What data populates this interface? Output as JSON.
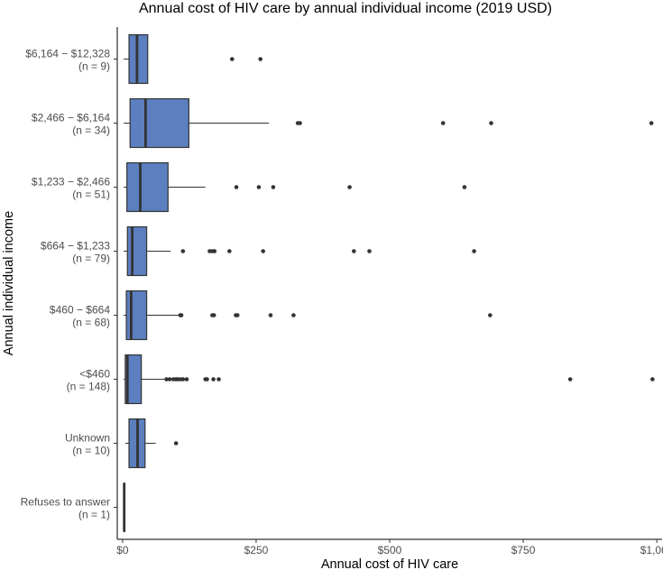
{
  "chart_data": {
    "type": "boxplot",
    "orientation": "horizontal",
    "title": "Annual cost of HIV care by annual individual income (2019 USD)",
    "xlabel": "Annual cost of HIV care",
    "ylabel": "Annual individual income",
    "xlim": [
      -10,
      1010
    ],
    "xticks": [
      {
        "value": 0,
        "label": "$0"
      },
      {
        "value": 250,
        "label": "$250"
      },
      {
        "value": 500,
        "label": "$500"
      },
      {
        "value": 750,
        "label": "$750"
      },
      {
        "value": 1000,
        "label": "$1,000"
      }
    ],
    "box_fill": "#5b7fbf",
    "grid": false,
    "categories": [
      {
        "label": "$6,164 − $12,328",
        "n_label": "(n = 9)",
        "min": 2,
        "q1": 12,
        "median": 27,
        "q3": 47,
        "max": 47,
        "outliers": [
          205,
          258
        ]
      },
      {
        "label": "$2,466 − $6,164",
        "n_label": "(n = 34)",
        "min": 2,
        "q1": 14,
        "median": 43,
        "q3": 124,
        "max": 274,
        "outliers": [
          328,
          332,
          600,
          690,
          990
        ]
      },
      {
        "label": "$1,233 − $2,466",
        "n_label": "(n = 51)",
        "min": 2,
        "q1": 8,
        "median": 33,
        "q3": 85,
        "max": 155,
        "outliers": [
          213,
          255,
          282,
          425,
          640
        ]
      },
      {
        "label": "$664 − $1,233",
        "n_label": "(n = 79)",
        "min": 2,
        "q1": 9,
        "median": 18,
        "q3": 45,
        "max": 90,
        "outliers": [
          113,
          163,
          168,
          172,
          200,
          263,
          433,
          462,
          658
        ]
      },
      {
        "label": "$460 − $664",
        "n_label": "(n = 68)",
        "min": 2,
        "q1": 7,
        "median": 16,
        "q3": 45,
        "max": 105,
        "outliers": [
          108,
          110,
          168,
          171,
          212,
          215,
          277,
          320,
          688
        ]
      },
      {
        "label": "<$460",
        "n_label": "(n = 148)",
        "min": 2,
        "q1": 5,
        "median": 9,
        "q3": 35,
        "max": 78,
        "outliers": [
          82,
          88,
          95,
          100,
          103,
          108,
          113,
          120,
          155,
          158,
          170,
          180,
          838,
          992
        ]
      },
      {
        "label": "Unknown",
        "n_label": "(n = 10)",
        "min": 5,
        "q1": 12,
        "median": 28,
        "q3": 42,
        "max": 62,
        "outliers": [
          100
        ]
      },
      {
        "label": "Refuses to answer",
        "n_label": "(n = 1)",
        "min": 3,
        "q1": 3,
        "median": 3,
        "q3": 3,
        "max": 3,
        "outliers": []
      }
    ]
  }
}
